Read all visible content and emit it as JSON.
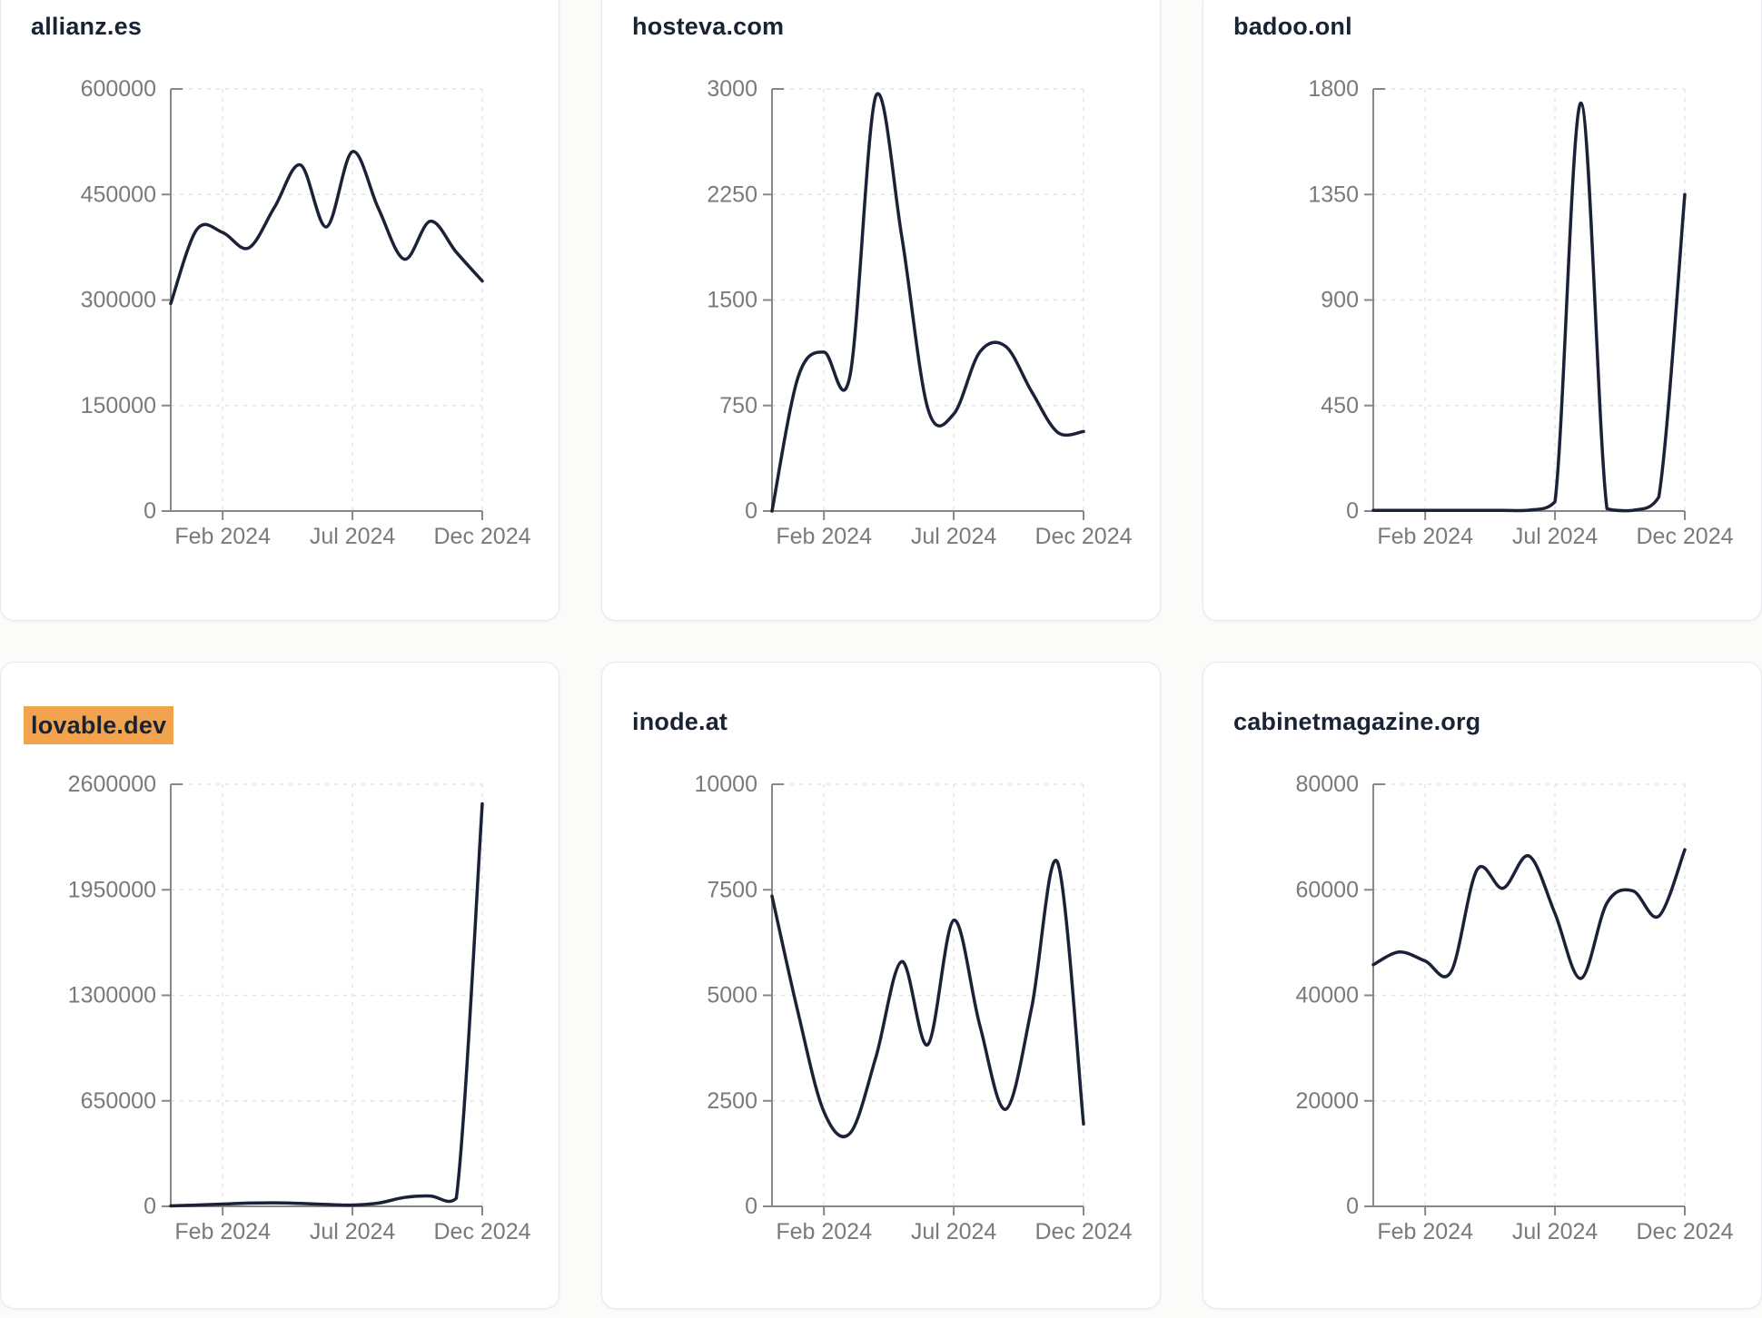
{
  "colors": {
    "page_bg": "#fbfbfa",
    "card_bg": "#ffffff",
    "card_border": "#e8e9ed",
    "title_color": "#1a2333",
    "line": "#1b2237",
    "axis": "#878787",
    "tick_label": "#7a7a7a",
    "grid": "#e4e4e4",
    "highlight": "#f2a34e"
  },
  "chart_data": [
    {
      "type": "line",
      "title": "allianz.es",
      "highlight": false,
      "xlabel": "",
      "ylabel": "",
      "grid": true,
      "legend": false,
      "ylim": [
        0,
        600000
      ],
      "y_ticks": [
        0,
        150000,
        300000,
        450000,
        600000
      ],
      "x": [
        "Dec 2023",
        "Jan 2024",
        "Feb 2024",
        "Mar 2024",
        "Apr 2024",
        "May 2024",
        "Jun 2024",
        "Jul 2024",
        "Aug 2024",
        "Sep 2024",
        "Oct 2024",
        "Nov 2024",
        "Dec 2024"
      ],
      "x_ticks": [
        {
          "index": 2,
          "label": "Feb 2024"
        },
        {
          "index": 7,
          "label": "Jul 2024"
        },
        {
          "index": 12,
          "label": "Dec 2024"
        }
      ],
      "values": [
        295000,
        400000,
        396000,
        374000,
        432000,
        492000,
        404000,
        511000,
        430000,
        358000,
        412000,
        368000,
        327000
      ]
    },
    {
      "type": "line",
      "title": "hosteva.com",
      "highlight": false,
      "xlabel": "",
      "ylabel": "",
      "grid": true,
      "legend": false,
      "ylim": [
        0,
        3000
      ],
      "y_ticks": [
        0,
        750,
        1500,
        2250,
        3000
      ],
      "x": [
        "Dec 2023",
        "Jan 2024",
        "Feb 2024",
        "Mar 2024",
        "Apr 2024",
        "May 2024",
        "Jun 2024",
        "Jul 2024",
        "Aug 2024",
        "Sep 2024",
        "Oct 2024",
        "Nov 2024",
        "Dec 2024"
      ],
      "x_ticks": [
        {
          "index": 2,
          "label": "Feb 2024"
        },
        {
          "index": 7,
          "label": "Jul 2024"
        },
        {
          "index": 12,
          "label": "Dec 2024"
        }
      ],
      "values": [
        0,
        950,
        1130,
        960,
        2950,
        1950,
        730,
        690,
        1130,
        1170,
        850,
        560,
        565
      ]
    },
    {
      "type": "line",
      "title": "badoo.onl",
      "highlight": false,
      "xlabel": "",
      "ylabel": "",
      "grid": true,
      "legend": false,
      "ylim": [
        0,
        1800
      ],
      "y_ticks": [
        0,
        450,
        900,
        1350,
        1800
      ],
      "x": [
        "Dec 2023",
        "Jan 2024",
        "Feb 2024",
        "Mar 2024",
        "Apr 2024",
        "May 2024",
        "Jun 2024",
        "Jul 2024",
        "Aug 2024",
        "Sep 2024",
        "Oct 2024",
        "Nov 2024",
        "Dec 2024"
      ],
      "x_ticks": [
        {
          "index": 2,
          "label": "Feb 2024"
        },
        {
          "index": 7,
          "label": "Jul 2024"
        },
        {
          "index": 12,
          "label": "Dec 2024"
        }
      ],
      "values": [
        3,
        3,
        3,
        3,
        3,
        3,
        4,
        40,
        1740,
        10,
        3,
        60,
        1350
      ]
    },
    {
      "type": "line",
      "title": "lovable.dev",
      "highlight": true,
      "xlabel": "",
      "ylabel": "",
      "grid": true,
      "legend": false,
      "ylim": [
        0,
        2600000
      ],
      "y_ticks": [
        0,
        650000,
        1300000,
        1950000,
        2600000
      ],
      "x": [
        "Dec 2023",
        "Jan 2024",
        "Feb 2024",
        "Mar 2024",
        "Apr 2024",
        "May 2024",
        "Jun 2024",
        "Jul 2024",
        "Aug 2024",
        "Sep 2024",
        "Oct 2024",
        "Nov 2024",
        "Dec 2024"
      ],
      "x_ticks": [
        {
          "index": 2,
          "label": "Feb 2024"
        },
        {
          "index": 7,
          "label": "Jul 2024"
        },
        {
          "index": 12,
          "label": "Dec 2024"
        }
      ],
      "values": [
        3000,
        8000,
        14000,
        20000,
        22000,
        18000,
        12000,
        8000,
        20000,
        55000,
        64000,
        50000,
        2480000
      ]
    },
    {
      "type": "line",
      "title": "inode.at",
      "highlight": false,
      "xlabel": "",
      "ylabel": "",
      "grid": true,
      "legend": false,
      "ylim": [
        0,
        10000
      ],
      "y_ticks": [
        0,
        2500,
        5000,
        7500,
        10000
      ],
      "x": [
        "Dec 2023",
        "Jan 2024",
        "Feb 2024",
        "Mar 2024",
        "Apr 2024",
        "May 2024",
        "Jun 2024",
        "Jul 2024",
        "Aug 2024",
        "Sep 2024",
        "Oct 2024",
        "Nov 2024",
        "Dec 2024"
      ],
      "x_ticks": [
        {
          "index": 2,
          "label": "Feb 2024"
        },
        {
          "index": 7,
          "label": "Jul 2024"
        },
        {
          "index": 12,
          "label": "Dec 2024"
        }
      ],
      "values": [
        7350,
        4600,
        2240,
        1730,
        3530,
        5800,
        3830,
        6780,
        4300,
        2300,
        4700,
        8150,
        1950
      ]
    },
    {
      "type": "line",
      "title": "cabinetmagazine.org",
      "highlight": false,
      "xlabel": "",
      "ylabel": "",
      "grid": true,
      "legend": false,
      "ylim": [
        0,
        80000
      ],
      "y_ticks": [
        0,
        20000,
        40000,
        60000,
        80000
      ],
      "x": [
        "Dec 2023",
        "Jan 2024",
        "Feb 2024",
        "Mar 2024",
        "Apr 2024",
        "May 2024",
        "Jun 2024",
        "Jul 2024",
        "Aug 2024",
        "Sep 2024",
        "Oct 2024",
        "Nov 2024",
        "Dec 2024"
      ],
      "x_ticks": [
        {
          "index": 2,
          "label": "Feb 2024"
        },
        {
          "index": 7,
          "label": "Jul 2024"
        },
        {
          "index": 12,
          "label": "Dec 2024"
        }
      ],
      "values": [
        45800,
        48200,
        46500,
        44500,
        63800,
        60300,
        66400,
        55500,
        43200,
        57500,
        59800,
        55000,
        67600
      ]
    }
  ]
}
